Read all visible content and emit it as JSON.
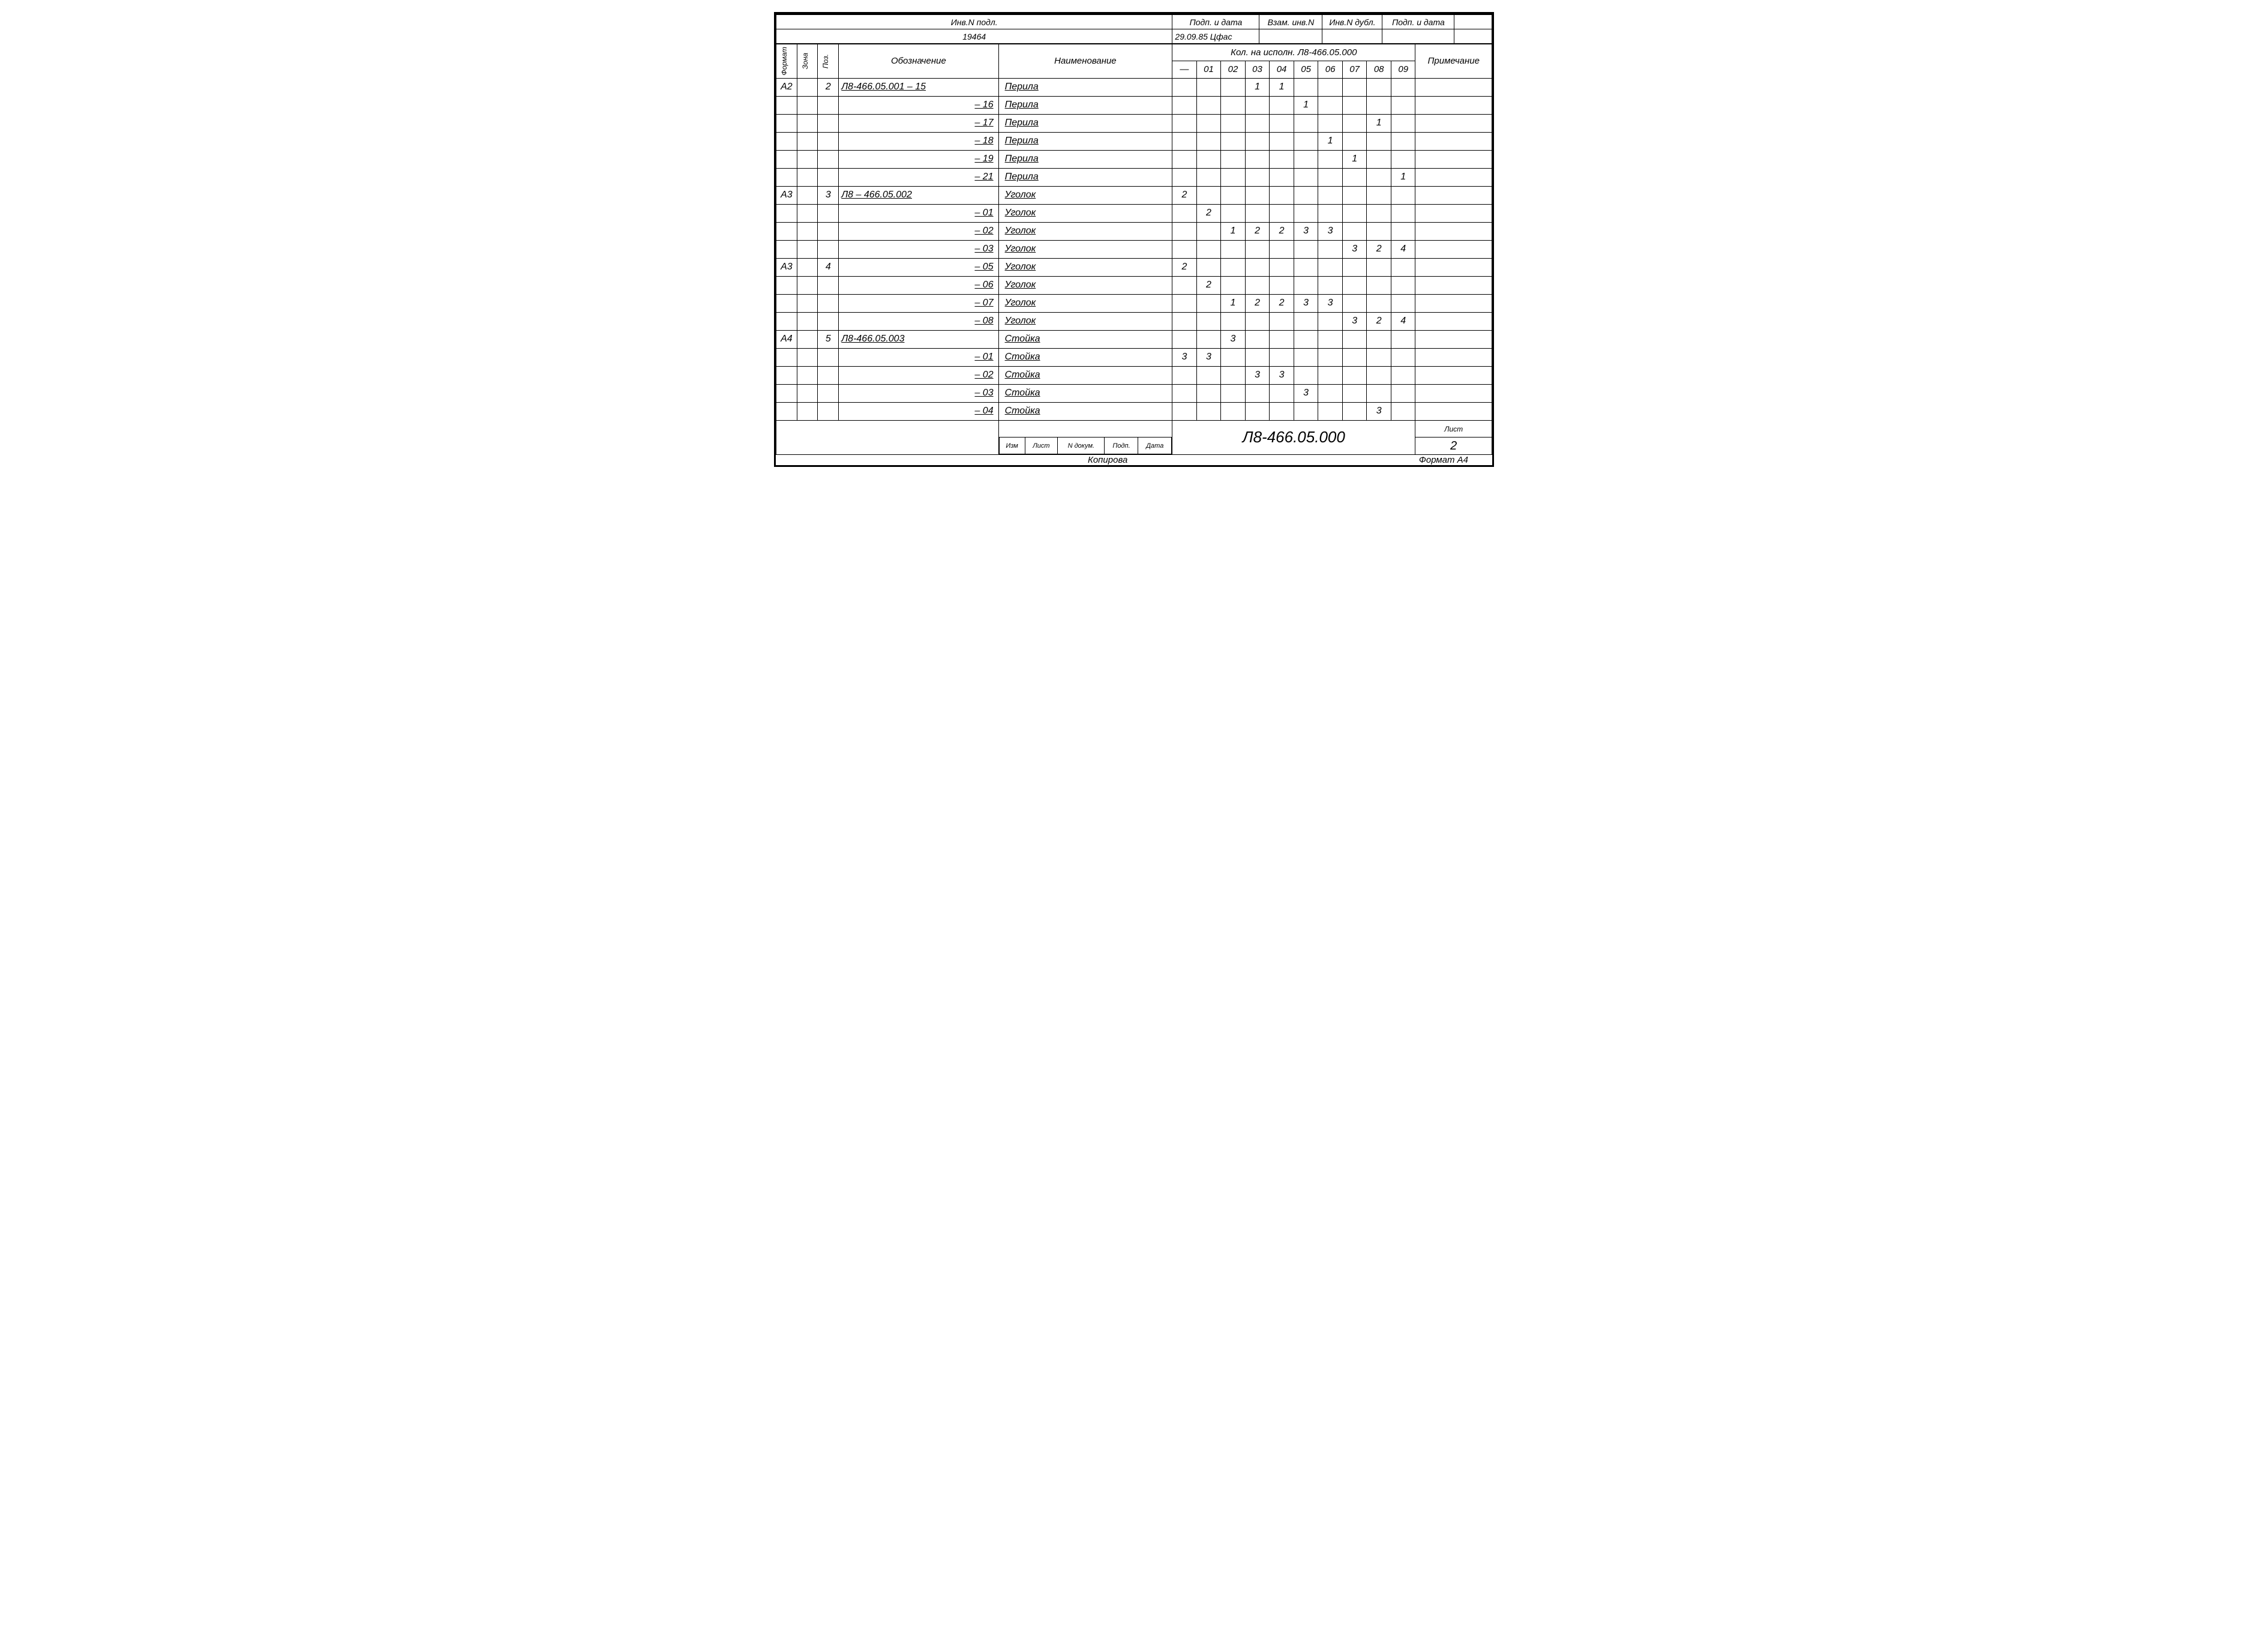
{
  "header": {
    "row1": [
      "Инв.N подл.",
      "Подп. и дата",
      "Взам. инв.N",
      "Инв.N дубл.",
      "Подп. и дата"
    ],
    "row2_col1": "19464",
    "row2_col2": "29.09.85 Цфас"
  },
  "columns": {
    "vert1": "Формат",
    "vert2": "Зона",
    "pos": "Поз.",
    "oboz": "Обозначение",
    "naim": "Наименование",
    "kol_header": "Кол. на исполн. Л8-466.05.000",
    "kol_sub": [
      "—",
      "01",
      "02",
      "03",
      "04",
      "05",
      "06",
      "07",
      "08",
      "09"
    ],
    "prim": "Примечание"
  },
  "rows": [
    {
      "f": "А2",
      "z": "",
      "p": "2",
      "oboz": "Л8-466.05.001 – 15",
      "naim": "Перила",
      "k": [
        "",
        "",
        "",
        "1",
        "1",
        "",
        "",
        "",
        "",
        ""
      ]
    },
    {
      "f": "",
      "z": "",
      "p": "",
      "oboz": "– 16",
      "naim": "Перила",
      "k": [
        "",
        "",
        "",
        "",
        "",
        "1",
        "",
        "",
        "",
        ""
      ]
    },
    {
      "f": "",
      "z": "",
      "p": "",
      "oboz": "– 17",
      "naim": "Перила",
      "k": [
        "",
        "",
        "",
        "",
        "",
        "",
        "",
        "",
        "1",
        ""
      ]
    },
    {
      "f": "",
      "z": "",
      "p": "",
      "oboz": "– 18",
      "naim": "Перила",
      "k": [
        "",
        "",
        "",
        "",
        "",
        "",
        "1",
        "",
        "",
        ""
      ]
    },
    {
      "f": "",
      "z": "",
      "p": "",
      "oboz": "– 19",
      "naim": "Перила",
      "k": [
        "",
        "",
        "",
        "",
        "",
        "",
        "",
        "1",
        "",
        ""
      ]
    },
    {
      "f": "",
      "z": "",
      "p": "",
      "oboz": "– 21",
      "naim": "Перила",
      "k": [
        "",
        "",
        "",
        "",
        "",
        "",
        "",
        "",
        "",
        "1"
      ]
    },
    {
      "f": "А3",
      "z": "",
      "p": "3",
      "oboz": "Л8 – 466.05.002",
      "naim": "Уголок",
      "k": [
        "2",
        "",
        "",
        "",
        "",
        "",
        "",
        "",
        "",
        ""
      ]
    },
    {
      "f": "",
      "z": "",
      "p": "",
      "oboz": "– 01",
      "naim": "Уголок",
      "k": [
        "",
        "2",
        "",
        "",
        "",
        "",
        "",
        "",
        "",
        ""
      ]
    },
    {
      "f": "",
      "z": "",
      "p": "",
      "oboz": "– 02",
      "naim": "Уголок",
      "k": [
        "",
        "",
        "1",
        "2",
        "2",
        "3",
        "3",
        "",
        "",
        ""
      ]
    },
    {
      "f": "",
      "z": "",
      "p": "",
      "oboz": "– 03",
      "naim": "Уголок",
      "k": [
        "",
        "",
        "",
        "",
        "",
        "",
        "",
        "3",
        "2",
        "4"
      ]
    },
    {
      "f": "А3",
      "z": "",
      "p": "4",
      "oboz": "– 05",
      "naim": "Уголок",
      "k": [
        "2",
        "",
        "",
        "",
        "",
        "",
        "",
        "",
        "",
        ""
      ]
    },
    {
      "f": "",
      "z": "",
      "p": "",
      "oboz": "– 06",
      "naim": "Уголок",
      "k": [
        "",
        "2",
        "",
        "",
        "",
        "",
        "",
        "",
        "",
        ""
      ]
    },
    {
      "f": "",
      "z": "",
      "p": "",
      "oboz": "– 07",
      "naim": "Уголок",
      "k": [
        "",
        "",
        "1",
        "2",
        "2",
        "3",
        "3",
        "",
        "",
        ""
      ]
    },
    {
      "f": "",
      "z": "",
      "p": "",
      "oboz": "– 08",
      "naim": "Уголок",
      "k": [
        "",
        "",
        "",
        "",
        "",
        "",
        "",
        "3",
        "2",
        "4"
      ]
    },
    {
      "f": "А4",
      "z": "",
      "p": "5",
      "oboz": "Л8-466.05.003",
      "naim": "Стойка",
      "k": [
        "",
        "",
        "3",
        "",
        "",
        "",
        "",
        "",
        "",
        ""
      ]
    },
    {
      "f": "",
      "z": "",
      "p": "",
      "oboz": "– 01",
      "naim": "Стойка",
      "k": [
        "3",
        "3",
        "",
        "",
        "",
        "",
        "",
        "",
        "",
        ""
      ]
    },
    {
      "f": "",
      "z": "",
      "p": "",
      "oboz": "– 02",
      "naim": "Стойка",
      "k": [
        "",
        "",
        "",
        "3",
        "3",
        "",
        "",
        "",
        "",
        ""
      ]
    },
    {
      "f": "",
      "z": "",
      "p": "",
      "oboz": "– 03",
      "naim": "Стойка",
      "k": [
        "",
        "",
        "",
        "",
        "",
        "3",
        "",
        "",
        "",
        ""
      ]
    },
    {
      "f": "",
      "z": "",
      "p": "",
      "oboz": "– 04",
      "naim": "Стойка",
      "k": [
        "",
        "",
        "",
        "",
        "",
        "",
        "",
        "",
        "3",
        ""
      ]
    }
  ],
  "footer": {
    "cols": [
      "Изм",
      "Лист",
      "N докум.",
      "Подп.",
      "Дата"
    ],
    "docnum": "Л8-466.05.000",
    "list_label": "Лист",
    "list_num": "2",
    "kopirova": "Копирова",
    "format": "Формат А4"
  }
}
